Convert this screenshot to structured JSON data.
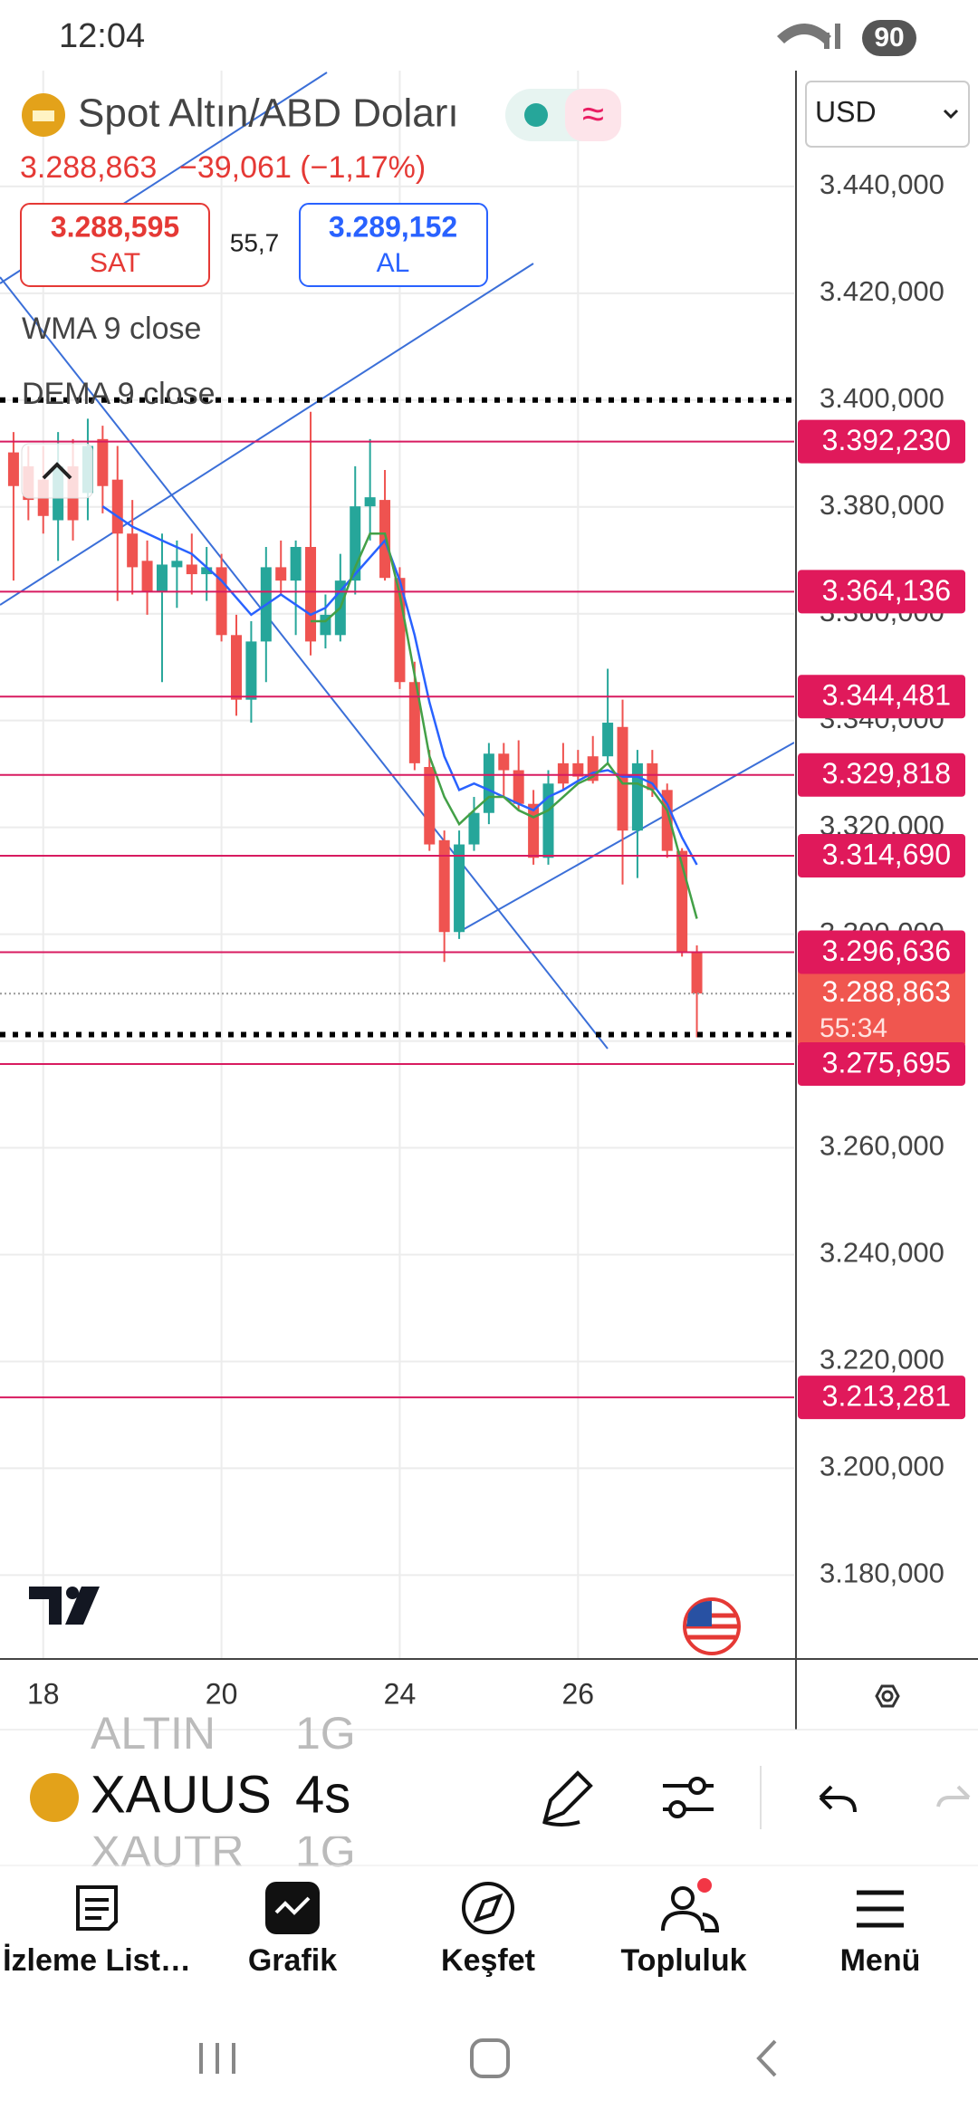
{
  "status": {
    "time": "12:04",
    "battery": "90"
  },
  "header": {
    "title": "Spot Altın/ABD Doları",
    "price": "3.288,863",
    "change": "−39,061 (−1,17%)",
    "sell": {
      "price": "3.288,595",
      "label": "SAT"
    },
    "spread": "55,7",
    "buy": {
      "price": "3.289,152",
      "label": "AL"
    }
  },
  "toolbar": {
    "symbol": "XAUUS",
    "interval": "4s",
    "prev_symbol": "ALTIN",
    "prev_interval": "1G",
    "next_symbol": "XAUTR",
    "next_interval": "1G"
  },
  "nav": [
    "İzleme List…",
    "Grafik",
    "Keşfet",
    "Topluluk",
    "Menü"
  ],
  "chart_data": {
    "type": "candlestick",
    "currency": "USD",
    "x": [
      -2,
      -1,
      0,
      1,
      2,
      3,
      4,
      5,
      6,
      7,
      8,
      9,
      10,
      11,
      12,
      13,
      14,
      15,
      16,
      17,
      18,
      19,
      20,
      21,
      22,
      23,
      24,
      25,
      26,
      27,
      28,
      29,
      30,
      31,
      32,
      33,
      34,
      35,
      36,
      37,
      38,
      39,
      40,
      41,
      42,
      43,
      44
    ],
    "open": [
      3390.2,
      3387.6,
      3385.1,
      3377.5,
      3387.6,
      3382.6,
      3392.7,
      3385.1,
      3375.0,
      3369.9,
      3364.1,
      3368.7,
      3369.2,
      3367.4,
      3368.7,
      3356.0,
      3343.9,
      3354.8,
      3368.7,
      3366.2,
      3372.5,
      3356.0,
      3356.0,
      3366.2,
      3380.1,
      3381.3,
      3366.7,
      3347.2,
      3331.3,
      3317.6,
      3300.4,
      3316.8,
      3322.7,
      3333.8,
      3330.7,
      3324.4,
      3314.3,
      3332.0,
      3332.0,
      3333.3,
      3333.3,
      3338.8,
      3319.4,
      3332.0,
      3327.0,
      3315.6,
      3296.6
    ],
    "high": [
      3394.0,
      3391.4,
      3391.4,
      3394.0,
      3392.7,
      3396.5,
      3395.2,
      3391.4,
      3381.3,
      3373.7,
      3375.0,
      3373.7,
      3375.0,
      3372.5,
      3371.2,
      3359.8,
      3358.6,
      3372.5,
      3373.7,
      3373.7,
      3397.8,
      3363.6,
      3371.2,
      3387.6,
      3392.7,
      3386.9,
      3368.7,
      3351.0,
      3334.5,
      3319.4,
      3319.4,
      3325.7,
      3335.8,
      3335.8,
      3336.3,
      3327.0,
      3330.7,
      3335.8,
      3334.5,
      3337.1,
      3349.7,
      3343.9,
      3334.5,
      3334.5,
      3328.2,
      3316.1,
      3297.9
    ],
    "low": [
      3366.2,
      3377.5,
      3375.0,
      3369.9,
      3373.7,
      3377.5,
      3378.8,
      3362.4,
      3363.6,
      3359.8,
      3347.2,
      3361.1,
      3363.6,
      3362.4,
      3354.8,
      3340.9,
      3339.6,
      3347.2,
      3363.6,
      3356.0,
      3352.2,
      3353.5,
      3354.8,
      3363.6,
      3373.7,
      3366.2,
      3345.9,
      3330.7,
      3315.6,
      3294.8,
      3299.1,
      3315.6,
      3320.6,
      3325.7,
      3323.2,
      3313.0,
      3313.0,
      3327.0,
      3328.2,
      3328.2,
      3332.0,
      3309.3,
      3310.5,
      3325.7,
      3314.3,
      3295.8,
      3280.7
    ],
    "close": [
      3383.9,
      3381.3,
      3378.3,
      3387.6,
      3377.5,
      3391.4,
      3383.9,
      3375.0,
      3368.7,
      3364.1,
      3369.2,
      3369.9,
      3367.4,
      3368.7,
      3356.0,
      3343.9,
      3354.8,
      3368.7,
      3366.2,
      3372.5,
      3354.8,
      3359.8,
      3366.2,
      3380.1,
      3381.8,
      3366.7,
      3347.2,
      3332.0,
      3316.8,
      3300.4,
      3316.8,
      3322.7,
      3333.8,
      3330.7,
      3324.4,
      3314.3,
      3328.2,
      3328.2,
      3329.5,
      3328.7,
      3339.6,
      3319.4,
      3332.0,
      3327.0,
      3315.6,
      3296.6,
      3288.9
    ],
    "up_color": "#26a69a",
    "down_color": "#ef5350",
    "grid": true,
    "xlim": [
      -2.91,
      50.55
    ],
    "xticks": [
      {
        "value": 0,
        "label": "18"
      },
      {
        "value": 12,
        "label": "20"
      },
      {
        "value": 24,
        "label": "24"
      },
      {
        "value": 36,
        "label": "26"
      }
    ],
    "ylim": [
      3164.3,
      3461.0
    ],
    "yticks": [
      {
        "value": 3440,
        "label": "3.440,000"
      },
      {
        "value": 3420,
        "label": "3.420,000"
      },
      {
        "value": 3400,
        "label": "3.400,000"
      },
      {
        "value": 3380,
        "label": "3.380,000"
      },
      {
        "value": 3360,
        "label": "3.360,000"
      },
      {
        "value": 3340,
        "label": "3.340,000"
      },
      {
        "value": 3320,
        "label": "3.320,000"
      },
      {
        "value": 3300,
        "label": "3.300,000"
      },
      {
        "value": 3280,
        "label": "3.280,000"
      },
      {
        "value": 3260,
        "label": "3.260,000"
      },
      {
        "value": 3240,
        "label": "3.240,000"
      },
      {
        "value": 3220,
        "label": "3.220,000"
      },
      {
        "value": 3200,
        "label": "3.200,000"
      },
      {
        "value": 3180,
        "label": "3.180,000"
      }
    ],
    "lines": [
      {
        "name": "WMA 9 close",
        "color": "#2962ff",
        "x": [
          4,
          6,
          8,
          10,
          12,
          14,
          16,
          18,
          19,
          21,
          23,
          24,
          25,
          26,
          27,
          28,
          29,
          30,
          31,
          32,
          33,
          34,
          35,
          36,
          37,
          38,
          39,
          40,
          41,
          42,
          43,
          44
        ],
        "values": [
          3380.1,
          3376.3,
          3373.7,
          3371.2,
          3366.2,
          3359.8,
          3363.6,
          3359.8,
          3361.1,
          3367.4,
          3373.7,
          3366.2,
          3356.0,
          3343.4,
          3333.3,
          3327.0,
          3328.2,
          3327.0,
          3325.7,
          3324.4,
          3323.2,
          3325.7,
          3327.0,
          3328.7,
          3330.2,
          3330.7,
          3329.5,
          3329.5,
          3328.2,
          3324.4,
          3318.1,
          3313.0
        ]
      },
      {
        "name": "DEMA 9 close",
        "color": "#43a047",
        "x": [
          18,
          19,
          20,
          21,
          22,
          23,
          24,
          25,
          26,
          27,
          28,
          29,
          30,
          31,
          32,
          33,
          34,
          35,
          36,
          37,
          38,
          39,
          40,
          41,
          42,
          43,
          44
        ],
        "values": [
          3358.6,
          3358.6,
          3361.1,
          3368.7,
          3375.0,
          3375.0,
          3363.6,
          3348.5,
          3333.3,
          3325.7,
          3320.6,
          3323.2,
          3325.7,
          3325.7,
          3323.2,
          3321.9,
          3323.2,
          3325.7,
          3328.2,
          3329.5,
          3332.0,
          3328.2,
          3328.2,
          3327.0,
          3323.2,
          3313.0,
          3302.9
        ]
      }
    ],
    "level_color": "#d81b60",
    "levels": [
      {
        "value": 3392.23,
        "label": "3.392,230"
      },
      {
        "value": 3364.136,
        "label": "3.364,136"
      },
      {
        "value": 3344.481,
        "label": "3.344,481"
      },
      {
        "value": 3329.818,
        "label": "3.329,818"
      },
      {
        "value": 3314.69,
        "label": "3.314,690"
      },
      {
        "value": 3296.636,
        "label": "3.296,636"
      },
      {
        "value": 3275.695,
        "label": "3.275,695"
      },
      {
        "value": 3213.281,
        "label": "3.213,281"
      }
    ],
    "dotted_levels": [
      3400,
      3281.2
    ],
    "last_price": {
      "value": 3288.863,
      "label": "3.288,863"
    },
    "countdown": "55:34"
  }
}
